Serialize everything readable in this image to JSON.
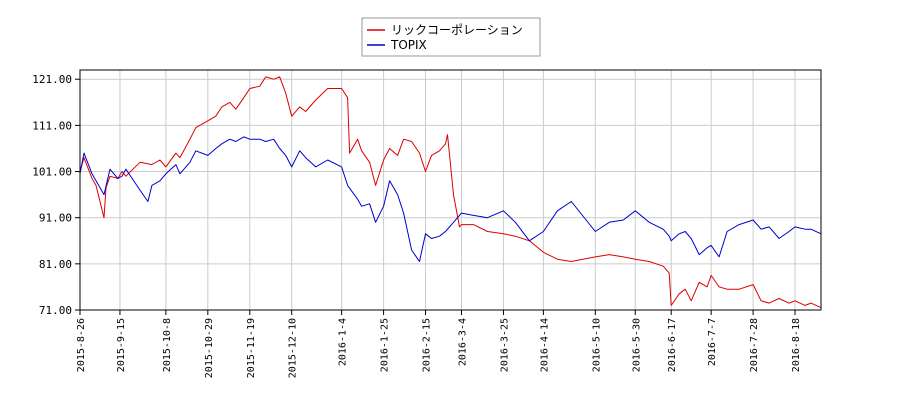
{
  "chart_data": {
    "type": "line",
    "title": "",
    "xlabel": "",
    "ylabel": "",
    "ylim": [
      71,
      123
    ],
    "y_ticks": [
      "71.00",
      "81.00",
      "91.00",
      "101.00",
      "111.00",
      "121.00"
    ],
    "y_tick_values": [
      71,
      81,
      91,
      101,
      111,
      121
    ],
    "x_ticks": [
      "2015-8-26",
      "2015-9-15",
      "2015-10-8",
      "2015-10-29",
      "2015-11-19",
      "2015-12-10",
      "2016-1-4",
      "2016-1-25",
      "2016-2-15",
      "2016-3-4",
      "2016-3-25",
      "2016-4-14",
      "2016-5-10",
      "2016-5-30",
      "2016-6-17",
      "2016-7-7",
      "2016-7-28",
      "2016-8-18"
    ],
    "x_end": "2016-8-31",
    "grid": true,
    "legend_position": "top-center",
    "series": [
      {
        "name": "リックコーポレーション",
        "color": "#dd0000",
        "x": [
          "2015-8-26",
          "2015-8-28",
          "2015-9-1",
          "2015-9-3",
          "2015-9-7",
          "2015-9-8",
          "2015-9-10",
          "2015-9-14",
          "2015-9-16",
          "2015-9-18",
          "2015-9-25",
          "2015-10-1",
          "2015-10-5",
          "2015-10-8",
          "2015-10-13",
          "2015-10-15",
          "2015-10-20",
          "2015-10-23",
          "2015-10-29",
          "2015-11-2",
          "2015-11-5",
          "2015-11-9",
          "2015-11-12",
          "2015-11-16",
          "2015-11-19",
          "2015-11-24",
          "2015-11-27",
          "2015-12-1",
          "2015-12-4",
          "2015-12-7",
          "2015-12-10",
          "2015-12-14",
          "2015-12-17",
          "2015-12-22",
          "2015-12-28",
          "2016-1-4",
          "2016-1-7",
          "2016-1-8",
          "2016-1-12",
          "2016-1-14",
          "2016-1-18",
          "2016-1-21",
          "2016-1-25",
          "2016-1-28",
          "2016-2-1",
          "2016-2-4",
          "2016-2-8",
          "2016-2-12",
          "2016-2-15",
          "2016-2-18",
          "2016-2-22",
          "2016-2-25",
          "2016-2-26",
          "2016-2-29",
          "2016-3-3",
          "2016-3-4",
          "2016-3-10",
          "2016-3-17",
          "2016-3-25",
          "2016-3-31",
          "2016-4-7",
          "2016-4-14",
          "2016-4-21",
          "2016-4-28",
          "2016-5-10",
          "2016-5-17",
          "2016-5-24",
          "2016-5-30",
          "2016-6-6",
          "2016-6-13",
          "2016-6-16",
          "2016-6-17",
          "2016-6-21",
          "2016-6-24",
          "2016-6-27",
          "2016-7-1",
          "2016-7-5",
          "2016-7-7",
          "2016-7-11",
          "2016-7-15",
          "2016-7-21",
          "2016-7-28",
          "2016-8-1",
          "2016-8-5",
          "2016-8-10",
          "2016-8-15",
          "2016-8-18",
          "2016-8-23",
          "2016-8-26",
          "2016-8-31"
        ],
        "values": [
          101.0,
          104.0,
          99.5,
          98.0,
          91.0,
          97.5,
          100.0,
          99.5,
          101.0,
          100.0,
          103.0,
          102.5,
          103.5,
          102.0,
          105.0,
          104.0,
          108.0,
          110.5,
          112.0,
          113.0,
          115.0,
          116.0,
          114.5,
          117.0,
          119.0,
          119.5,
          121.5,
          121.0,
          121.5,
          118.0,
          113.0,
          115.0,
          114.0,
          116.5,
          119.0,
          119.0,
          117.0,
          105.0,
          108.0,
          105.5,
          103.0,
          98.0,
          103.5,
          106.0,
          104.5,
          108.0,
          107.5,
          105.0,
          101.0,
          104.5,
          105.5,
          107.0,
          109.0,
          96.0,
          89.0,
          89.5,
          89.5,
          88.0,
          87.5,
          87.0,
          86.0,
          83.5,
          82.0,
          81.5,
          82.5,
          83.0,
          82.5,
          82.0,
          81.5,
          80.5,
          79.0,
          72.0,
          74.5,
          75.5,
          73.0,
          77.0,
          76.0,
          78.5,
          76.0,
          75.5,
          75.5,
          76.5,
          73.0,
          72.5,
          73.5,
          72.5,
          73.0,
          72.0,
          72.5,
          71.5
        ]
      },
      {
        "name": "TOPIX",
        "color": "#0000cc",
        "x": [
          "2015-8-26",
          "2015-8-28",
          "2015-9-1",
          "2015-9-3",
          "2015-9-7",
          "2015-9-10",
          "2015-9-14",
          "2015-9-16",
          "2015-9-18",
          "2015-9-25",
          "2015-9-29",
          "2015-10-1",
          "2015-10-5",
          "2015-10-8",
          "2015-10-13",
          "2015-10-15",
          "2015-10-20",
          "2015-10-23",
          "2015-10-29",
          "2015-11-2",
          "2015-11-5",
          "2015-11-9",
          "2015-11-12",
          "2015-11-16",
          "2015-11-19",
          "2015-11-24",
          "2015-11-27",
          "2015-12-1",
          "2015-12-4",
          "2015-12-7",
          "2015-12-10",
          "2015-12-14",
          "2015-12-17",
          "2015-12-22",
          "2015-12-28",
          "2016-1-4",
          "2016-1-7",
          "2016-1-12",
          "2016-1-14",
          "2016-1-18",
          "2016-1-21",
          "2016-1-25",
          "2016-1-28",
          "2016-2-1",
          "2016-2-4",
          "2016-2-8",
          "2016-2-12",
          "2016-2-15",
          "2016-2-18",
          "2016-2-22",
          "2016-2-25",
          "2016-2-29",
          "2016-3-4",
          "2016-3-10",
          "2016-3-17",
          "2016-3-25",
          "2016-3-31",
          "2016-4-7",
          "2016-4-14",
          "2016-4-21",
          "2016-4-28",
          "2016-5-10",
          "2016-5-17",
          "2016-5-24",
          "2016-5-30",
          "2016-6-6",
          "2016-6-13",
          "2016-6-16",
          "2016-6-17",
          "2016-6-21",
          "2016-6-24",
          "2016-6-27",
          "2016-7-1",
          "2016-7-5",
          "2016-7-7",
          "2016-7-11",
          "2016-7-15",
          "2016-7-21",
          "2016-7-28",
          "2016-8-1",
          "2016-8-5",
          "2016-8-10",
          "2016-8-15",
          "2016-8-18",
          "2016-8-23",
          "2016-8-26",
          "2016-8-31"
        ],
        "values": [
          100.5,
          105.0,
          100.5,
          99.0,
          96.0,
          101.5,
          99.5,
          100.0,
          101.5,
          97.0,
          94.5,
          98.0,
          99.0,
          100.5,
          102.5,
          100.5,
          103.0,
          105.5,
          104.5,
          106.0,
          107.0,
          108.0,
          107.5,
          108.5,
          108.0,
          108.0,
          107.5,
          108.0,
          106.0,
          104.5,
          102.0,
          105.5,
          104.0,
          102.0,
          103.5,
          102.0,
          98.0,
          95.0,
          93.5,
          94.0,
          90.0,
          93.5,
          99.0,
          96.0,
          92.0,
          84.0,
          81.5,
          87.5,
          86.5,
          87.0,
          88.0,
          90.0,
          92.0,
          91.5,
          91.0,
          92.5,
          90.0,
          86.0,
          88.0,
          92.5,
          94.5,
          88.0,
          90.0,
          90.5,
          92.5,
          90.0,
          88.5,
          87.0,
          86.0,
          87.5,
          88.0,
          86.5,
          83.0,
          84.5,
          85.0,
          82.5,
          88.0,
          89.5,
          90.5,
          88.5,
          89.0,
          86.5,
          88.0,
          89.0,
          88.5,
          88.5,
          87.5
        ]
      }
    ]
  }
}
